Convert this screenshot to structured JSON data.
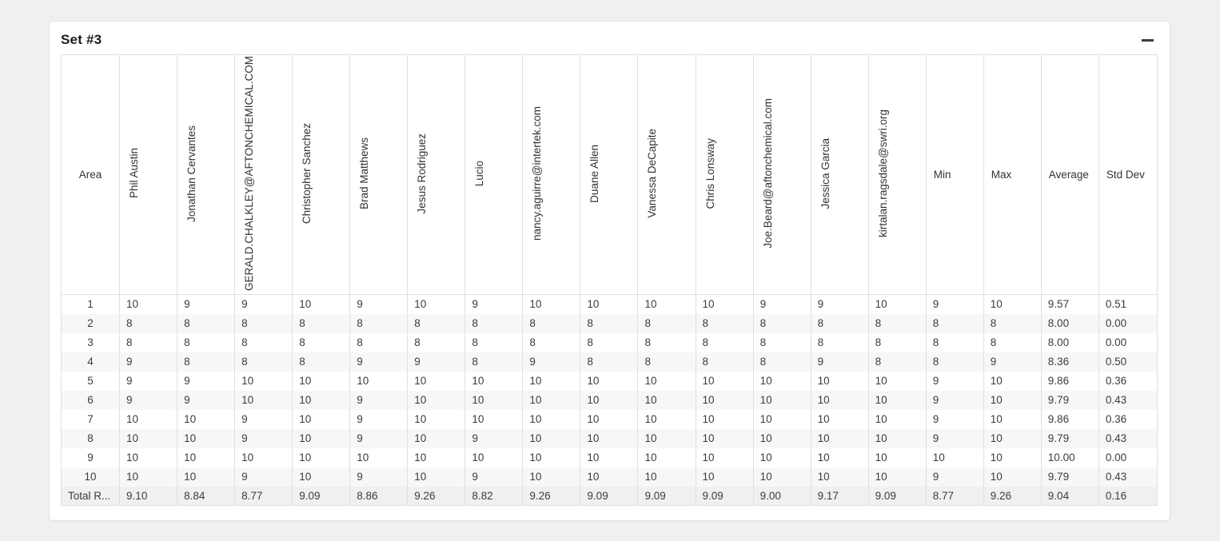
{
  "card": {
    "title": "Set #3",
    "collapse_icon": "minus"
  },
  "table": {
    "area_header": "Area",
    "rater_headers": [
      "Phil Austin",
      "Jonathan Cervantes",
      "GERALD.CHALKLEY@AFTONCHEMICAL.COM",
      "Christopher Sanchez",
      "Brad Matthews",
      "Jesus Rodriguez",
      "Lucio",
      "nancy.aguirre@intertek.com",
      "Duane Allen",
      "Vanessa DeCapite",
      "Chris Lonsway",
      "Joe.Beard@aftonchemical.com",
      "Jessica Garcia",
      "kirtalan.ragsdale@swri.org"
    ],
    "stat_headers": [
      "Min",
      "Max",
      "Average",
      "Std Dev"
    ],
    "rows": [
      {
        "area": "1",
        "ratings": [
          "10",
          "9",
          "9",
          "10",
          "9",
          "10",
          "9",
          "10",
          "10",
          "10",
          "10",
          "9",
          "9",
          "10"
        ],
        "stats": [
          "9",
          "10",
          "9.57",
          "0.51"
        ]
      },
      {
        "area": "2",
        "ratings": [
          "8",
          "8",
          "8",
          "8",
          "8",
          "8",
          "8",
          "8",
          "8",
          "8",
          "8",
          "8",
          "8",
          "8"
        ],
        "stats": [
          "8",
          "8",
          "8.00",
          "0.00"
        ]
      },
      {
        "area": "3",
        "ratings": [
          "8",
          "8",
          "8",
          "8",
          "8",
          "8",
          "8",
          "8",
          "8",
          "8",
          "8",
          "8",
          "8",
          "8"
        ],
        "stats": [
          "8",
          "8",
          "8.00",
          "0.00"
        ]
      },
      {
        "area": "4",
        "ratings": [
          "9",
          "8",
          "8",
          "8",
          "9",
          "9",
          "8",
          "9",
          "8",
          "8",
          "8",
          "8",
          "9",
          "8"
        ],
        "stats": [
          "8",
          "9",
          "8.36",
          "0.50"
        ]
      },
      {
        "area": "5",
        "ratings": [
          "9",
          "9",
          "10",
          "10",
          "10",
          "10",
          "10",
          "10",
          "10",
          "10",
          "10",
          "10",
          "10",
          "10"
        ],
        "stats": [
          "9",
          "10",
          "9.86",
          "0.36"
        ]
      },
      {
        "area": "6",
        "ratings": [
          "9",
          "9",
          "10",
          "10",
          "9",
          "10",
          "10",
          "10",
          "10",
          "10",
          "10",
          "10",
          "10",
          "10"
        ],
        "stats": [
          "9",
          "10",
          "9.79",
          "0.43"
        ]
      },
      {
        "area": "7",
        "ratings": [
          "10",
          "10",
          "9",
          "10",
          "9",
          "10",
          "10",
          "10",
          "10",
          "10",
          "10",
          "10",
          "10",
          "10"
        ],
        "stats": [
          "9",
          "10",
          "9.86",
          "0.36"
        ]
      },
      {
        "area": "8",
        "ratings": [
          "10",
          "10",
          "9",
          "10",
          "9",
          "10",
          "9",
          "10",
          "10",
          "10",
          "10",
          "10",
          "10",
          "10"
        ],
        "stats": [
          "9",
          "10",
          "9.79",
          "0.43"
        ]
      },
      {
        "area": "9",
        "ratings": [
          "10",
          "10",
          "10",
          "10",
          "10",
          "10",
          "10",
          "10",
          "10",
          "10",
          "10",
          "10",
          "10",
          "10"
        ],
        "stats": [
          "10",
          "10",
          "10.00",
          "0.00"
        ]
      },
      {
        "area": "10",
        "ratings": [
          "10",
          "10",
          "9",
          "10",
          "9",
          "10",
          "9",
          "10",
          "10",
          "10",
          "10",
          "10",
          "10",
          "10"
        ],
        "stats": [
          "9",
          "10",
          "9.79",
          "0.43"
        ]
      }
    ],
    "total_row": {
      "label": "Total R...",
      "ratings": [
        "9.10",
        "8.84",
        "8.77",
        "9.09",
        "8.86",
        "9.26",
        "8.82",
        "9.26",
        "9.09",
        "9.09",
        "9.09",
        "9.00",
        "9.17",
        "9.09"
      ],
      "stats": [
        "8.77",
        "9.26",
        "9.04",
        "0.16"
      ]
    }
  },
  "theme": {
    "page_bg": "#f0f0f1",
    "card_bg": "#ffffff",
    "border": "#e0e0e0",
    "stripe": "#f7f7f7",
    "total_row_bg": "#f0f0f0",
    "text": "#3c3c3c"
  }
}
